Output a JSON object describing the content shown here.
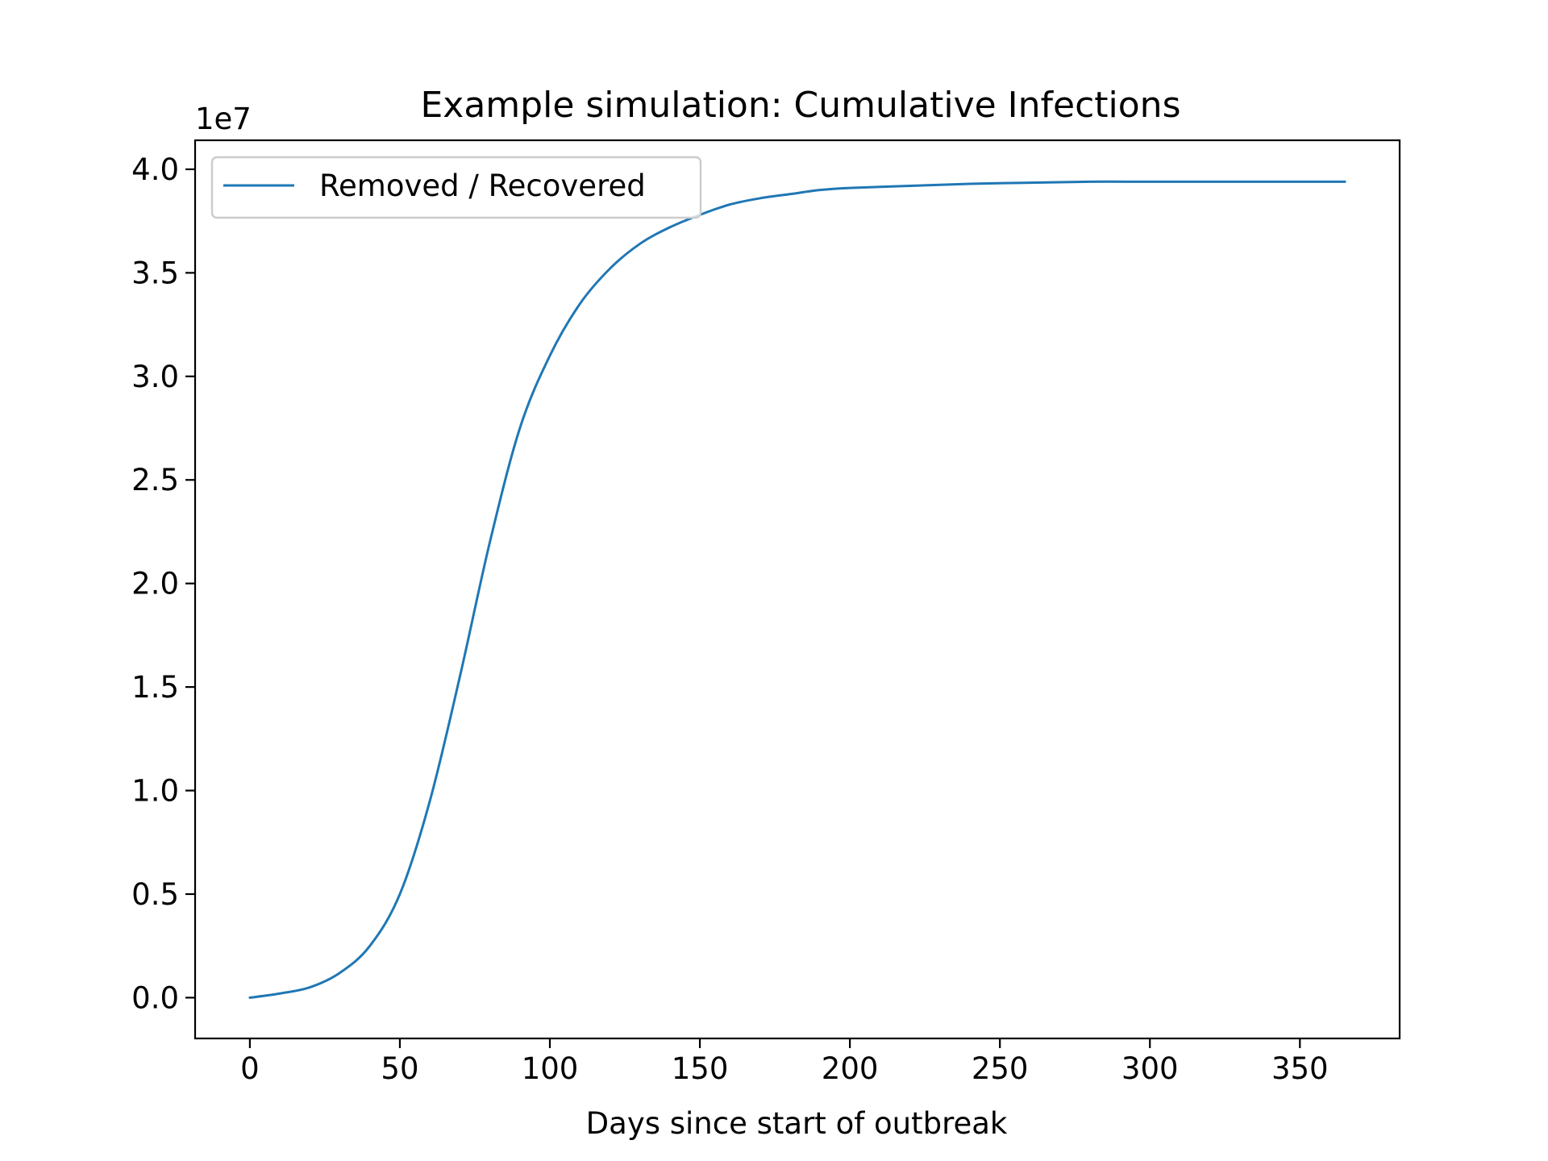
{
  "chart_data": {
    "type": "line",
    "title": "Example simulation: Cumulative Infections",
    "xlabel": "Days since start of outbreak",
    "ylabel": "",
    "y_offset_label": "1e7",
    "xlim": [
      -18.25,
      383.25
    ],
    "ylim": [
      -0.197,
      4.14
    ],
    "x_ticks": [
      0,
      50,
      100,
      150,
      200,
      250,
      300,
      350
    ],
    "x_tick_labels": [
      "0",
      "50",
      "100",
      "150",
      "200",
      "250",
      "300",
      "350"
    ],
    "y_ticks": [
      0.0,
      0.5,
      1.0,
      1.5,
      2.0,
      2.5,
      3.0,
      3.5,
      4.0
    ],
    "y_tick_labels": [
      "0.0",
      "0.5",
      "1.0",
      "1.5",
      "2.0",
      "2.5",
      "3.0",
      "3.5",
      "4.0"
    ],
    "grid": false,
    "legend_position": "upper-left",
    "series": [
      {
        "name": "Removed / Recovered",
        "color": "#1f77b4",
        "x": [
          0,
          10,
          20,
          30,
          40,
          50,
          60,
          70,
          80,
          90,
          100,
          110,
          120,
          130,
          140,
          150,
          160,
          170,
          180,
          190,
          200,
          220,
          240,
          260,
          280,
          300,
          330,
          365
        ],
        "y": [
          0.0,
          0.02,
          0.05,
          0.12,
          0.25,
          0.5,
          0.95,
          1.55,
          2.2,
          2.75,
          3.1,
          3.35,
          3.52,
          3.64,
          3.72,
          3.78,
          3.83,
          3.86,
          3.88,
          3.9,
          3.91,
          3.92,
          3.93,
          3.935,
          3.94,
          3.94,
          3.94,
          3.94
        ]
      }
    ]
  }
}
